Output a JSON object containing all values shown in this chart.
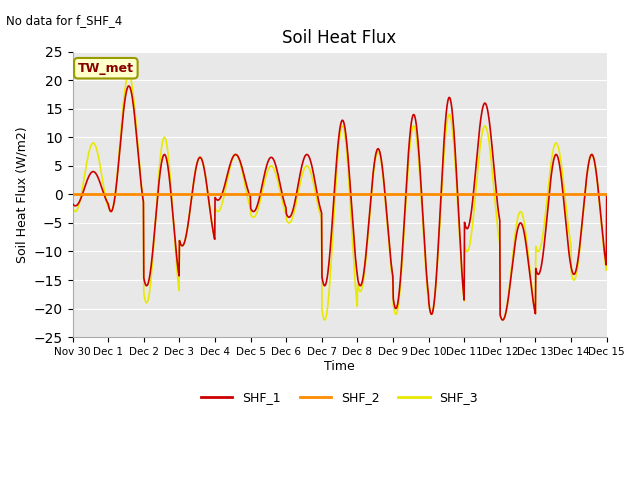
{
  "title": "Soil Heat Flux",
  "subtitle": "No data for f_SHF_4",
  "ylabel": "Soil Heat Flux (W/m2)",
  "xlabel": "Time",
  "ylim": [
    -25,
    25
  ],
  "yticks": [
    -25,
    -20,
    -15,
    -10,
    -5,
    0,
    5,
    10,
    15,
    20,
    25
  ],
  "annotation": "TW_met",
  "background_color": "#e8e8e8",
  "legend_labels": [
    "SHF_1",
    "SHF_2",
    "SHF_3"
  ],
  "shf1_color": "#cc0000",
  "shf2_color": "#ff8c00",
  "shf3_color": "#e8e800",
  "x_tick_labels": [
    "Nov 30",
    "Dec 1",
    "Dec 2",
    "Dec 3",
    "Dec 4",
    "Dec 5",
    "Dec 6",
    "Dec 7",
    "Dec 8",
    "Dec 9",
    "Dec 10",
    "Dec 11",
    "Dec 12",
    "Dec 13",
    "Dec 14",
    "Dec 15"
  ],
  "annotation_facecolor": "#ffffcc",
  "annotation_edgecolor": "#999900",
  "annotation_textcolor": "#880000"
}
